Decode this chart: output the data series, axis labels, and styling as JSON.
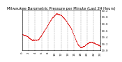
{
  "title": "Milwaukee Barometric Pressure per Minute (Last 24 Hours)",
  "background_color": "#ffffff",
  "plot_bg_color": "#ffffff",
  "grid_color": "#999999",
  "line_color": "#dd0000",
  "ylim": [
    29.0,
    30.2
  ],
  "ytick_values": [
    29.0,
    29.2,
    29.4,
    29.6,
    29.8,
    30.0,
    30.2
  ],
  "ytick_labels": [
    "29.0",
    "29.2",
    "29.4",
    "29.6",
    "29.8",
    "30.0",
    "30.2"
  ],
  "num_points": 1440,
  "title_fontsize": 3.8,
  "tick_fontsize": 2.8,
  "keypoints_t": [
    0,
    1.5,
    3,
    5,
    7,
    9,
    10.5,
    12,
    13.5,
    15,
    16,
    17,
    18,
    19,
    20,
    21,
    22,
    23,
    24
  ],
  "keypoints_v": [
    29.48,
    29.42,
    29.3,
    29.32,
    29.62,
    29.95,
    30.1,
    30.05,
    29.88,
    29.65,
    29.42,
    29.18,
    29.08,
    29.12,
    29.2,
    29.25,
    29.22,
    29.18,
    29.12
  ]
}
